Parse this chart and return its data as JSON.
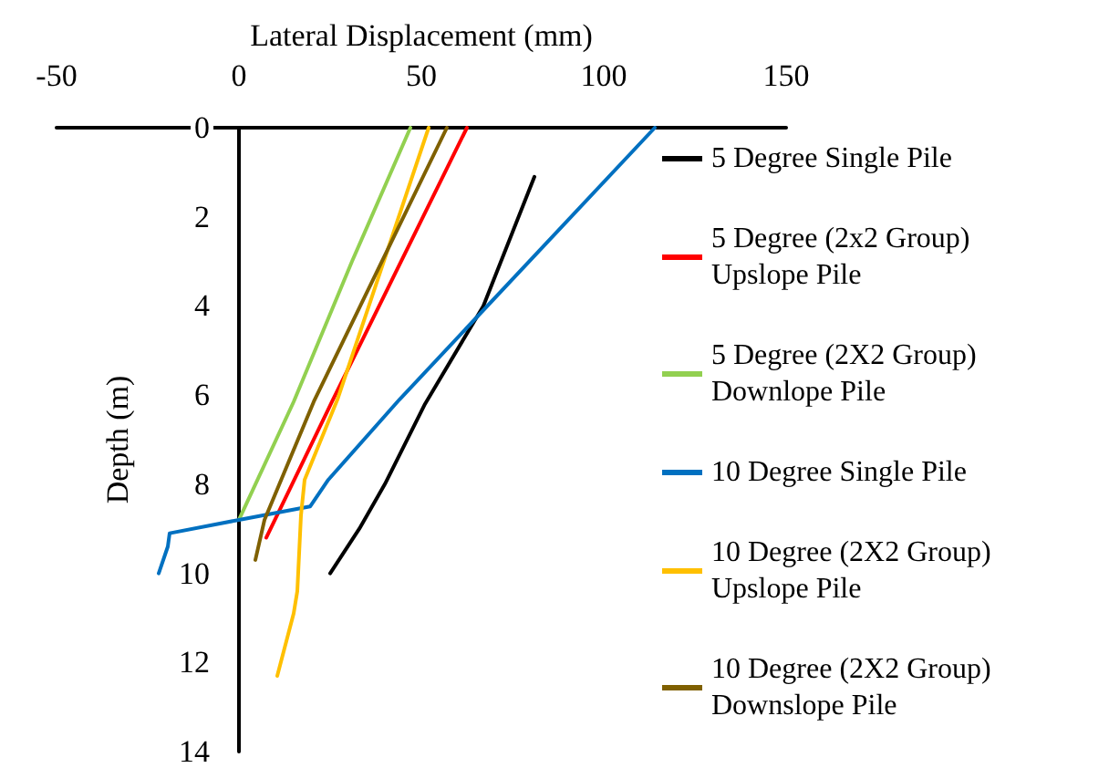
{
  "chart_data": {
    "type": "line",
    "xlabel": "Lateral Displacement (mm)",
    "ylabel": "Depth (m)",
    "xlim": [
      -50,
      150
    ],
    "xticks": [
      -50,
      0,
      50,
      100,
      150
    ],
    "ylim": [
      14,
      0
    ],
    "yticks": [
      0,
      2,
      4,
      6,
      8,
      10,
      12,
      14
    ],
    "grid": false,
    "legend": "right",
    "marker": "none",
    "line_style": "solid",
    "series": [
      {
        "name": "5 Degree Single Pile",
        "color": "#000000",
        "x": [
          81,
          67,
          51,
          40,
          33,
          25
        ],
        "values": [
          1.1,
          4,
          6.2,
          8,
          9,
          10
        ]
      },
      {
        "name": "5 Degree (2x2 Group) Upslope Pile",
        "color": "#ff0000",
        "x": [
          62.5,
          25.5,
          7.5
        ],
        "values": [
          0,
          6.15,
          9.2
        ]
      },
      {
        "name": "5 Degree (2X2 Group) Downlope Pile",
        "color": "#92d050",
        "x": [
          47,
          31,
          15,
          0
        ],
        "values": [
          0,
          3,
          6.15,
          8.8
        ]
      },
      {
        "name": "10 Degree Single Pile",
        "color": "#0070c0",
        "x": [
          114,
          44,
          24.5,
          19.5,
          0,
          -19,
          -19.5,
          -22
        ],
        "values": [
          0,
          6.1,
          7.9,
          8.5,
          8.8,
          9.1,
          9.4,
          10
        ]
      },
      {
        "name": "10 Degree (2X2 Group) Upslope Pile",
        "color": "#ffc000",
        "x": [
          52,
          27,
          18,
          17,
          16,
          15,
          10.5
        ],
        "values": [
          0,
          6.1,
          7.9,
          8.7,
          10.4,
          10.9,
          12.3
        ]
      },
      {
        "name": "10 Degree (2X2 Group) Downslope Pile",
        "color": "#7f6000",
        "x": [
          57,
          20.5,
          7,
          4.5
        ],
        "values": [
          0,
          6.15,
          8.8,
          9.7
        ]
      }
    ]
  }
}
